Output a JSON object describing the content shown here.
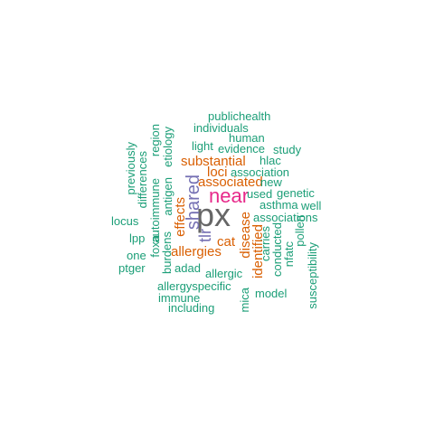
{
  "colors": {
    "teal": "#1b9e77",
    "orange": "#d95f02",
    "purple": "#7570b3",
    "magenta": "#e7298a",
    "gray": "#666666"
  },
  "words": [
    {
      "text": "px",
      "color": "gray"
    },
    {
      "text": "near",
      "color": "magenta"
    },
    {
      "text": "shared",
      "color": "purple"
    },
    {
      "text": "tlr",
      "color": "purple"
    },
    {
      "text": "substantial",
      "color": "orange"
    },
    {
      "text": "loci",
      "color": "orange"
    },
    {
      "text": "associated",
      "color": "orange"
    },
    {
      "text": "effects",
      "color": "orange"
    },
    {
      "text": "allergies",
      "color": "orange"
    },
    {
      "text": "cat",
      "color": "orange"
    },
    {
      "text": "disease",
      "color": "orange"
    },
    {
      "text": "identified",
      "color": "orange"
    },
    {
      "text": "publichealth",
      "color": "teal"
    },
    {
      "text": "individuals",
      "color": "teal"
    },
    {
      "text": "human",
      "color": "teal"
    },
    {
      "text": "light",
      "color": "teal"
    },
    {
      "text": "evidence",
      "color": "teal"
    },
    {
      "text": "study",
      "color": "teal"
    },
    {
      "text": "hlac",
      "color": "teal"
    },
    {
      "text": "association",
      "color": "teal"
    },
    {
      "text": "new",
      "color": "teal"
    },
    {
      "text": "used",
      "color": "teal"
    },
    {
      "text": "genetic",
      "color": "teal"
    },
    {
      "text": "asthma",
      "color": "teal"
    },
    {
      "text": "well",
      "color": "teal"
    },
    {
      "text": "associations",
      "color": "teal"
    },
    {
      "text": "locus",
      "color": "teal"
    },
    {
      "text": "lpp",
      "color": "teal"
    },
    {
      "text": "one",
      "color": "teal"
    },
    {
      "text": "ptger",
      "color": "teal"
    },
    {
      "text": "adad",
      "color": "teal"
    },
    {
      "text": "allergic",
      "color": "teal"
    },
    {
      "text": "allergyspecific",
      "color": "teal"
    },
    {
      "text": "immune",
      "color": "teal"
    },
    {
      "text": "including",
      "color": "teal"
    },
    {
      "text": "model",
      "color": "teal"
    },
    {
      "text": "previously",
      "color": "teal"
    },
    {
      "text": "differences",
      "color": "teal"
    },
    {
      "text": "autoimmune",
      "color": "teal"
    },
    {
      "text": "region",
      "color": "teal"
    },
    {
      "text": "etiology",
      "color": "teal"
    },
    {
      "text": "antigen",
      "color": "teal"
    },
    {
      "text": "foxa",
      "color": "teal"
    },
    {
      "text": "burdens",
      "color": "teal"
    },
    {
      "text": "mica",
      "color": "teal"
    },
    {
      "text": "carries",
      "color": "teal"
    },
    {
      "text": "conducted",
      "color": "teal"
    },
    {
      "text": "nfatc",
      "color": "teal"
    },
    {
      "text": "pollen",
      "color": "teal"
    },
    {
      "text": "susceptibility",
      "color": "teal"
    }
  ]
}
